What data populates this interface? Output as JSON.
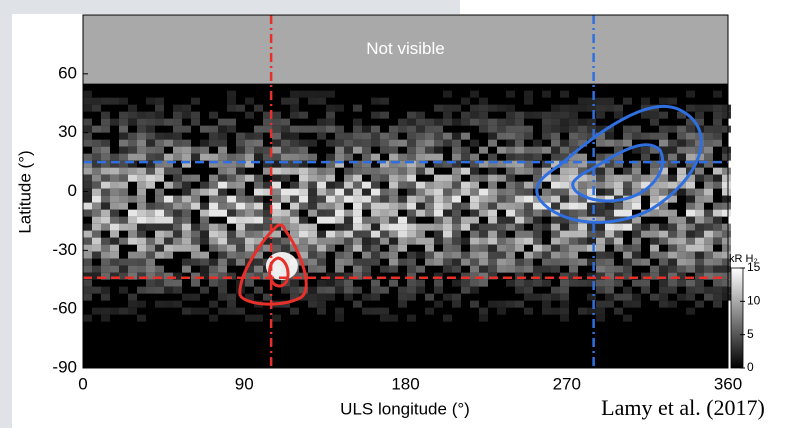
{
  "chart_data": {
    "type": "heatmap",
    "annotation": "Not visible",
    "not_visible_above": 55,
    "xlabel": "ULS longitude (°)",
    "ylabel": "Latitude (°)",
    "xlim": [
      0,
      360
    ],
    "xticks": [
      0,
      90,
      180,
      270,
      360
    ],
    "ylim": [
      -90,
      90
    ],
    "yticks": [
      -90,
      -60,
      -30,
      0,
      30,
      60
    ],
    "vlines": [
      {
        "value": 105,
        "color": "#e8302a"
      },
      {
        "value": 285,
        "color": "#2f6fe0"
      }
    ],
    "hlines": [
      {
        "value": 15,
        "color": "#2f6fe0"
      },
      {
        "value": -44,
        "color": "#e8302a"
      }
    ],
    "colorbar": {
      "label": "kR H₂",
      "lim": [
        0,
        15
      ],
      "ticks": [
        0,
        5,
        10,
        15
      ]
    }
  },
  "credit": "Lamy et al. (2017)"
}
